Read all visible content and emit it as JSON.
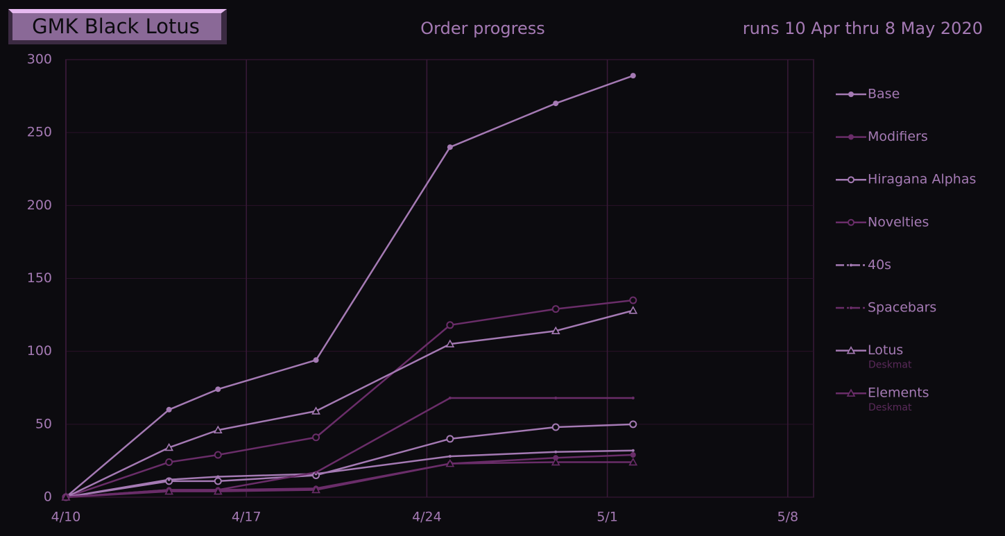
{
  "chart_data": {
    "type": "line",
    "title": "GMK Black Lotus",
    "subtitle": "Order progress",
    "annotation": "runs 10 Apr thru 8 May 2020",
    "x": [
      0,
      4,
      5.9,
      9.7,
      14.9,
      19,
      22
    ],
    "xlim": [
      0,
      29
    ],
    "xticks": [
      {
        "value": 0,
        "label": "4/10"
      },
      {
        "value": 7,
        "label": "4/17"
      },
      {
        "value": 14,
        "label": "4/24"
      },
      {
        "value": 21,
        "label": "5/1"
      },
      {
        "value": 28,
        "label": "5/8"
      }
    ],
    "ylim": [
      0,
      300
    ],
    "yticks": [
      0,
      50,
      100,
      150,
      200,
      250,
      300
    ],
    "grid": true,
    "legend": "right",
    "series": [
      {
        "name": "Base",
        "color": "#a57ab4",
        "marker": "dot",
        "values": [
          0,
          60,
          74,
          94,
          240,
          270,
          289
        ]
      },
      {
        "name": "Modifiers",
        "color": "#6a2d69",
        "marker": "dot",
        "values": [
          0,
          5,
          5,
          6,
          23,
          27,
          29
        ]
      },
      {
        "name": "Hiragana Alphas",
        "color": "#a57ab4",
        "marker": "circle",
        "values": [
          0,
          11,
          11,
          15,
          40,
          48,
          50
        ]
      },
      {
        "name": "Novelties",
        "color": "#6a2d69",
        "marker": "circle",
        "values": [
          0,
          24,
          29,
          41,
          118,
          129,
          135
        ]
      },
      {
        "name": "40s",
        "color": "#a57ab4",
        "marker": "point",
        "values": [
          0,
          12,
          14,
          16,
          28,
          31,
          32
        ]
      },
      {
        "name": "Spacebars",
        "color": "#6a2d69",
        "marker": "point",
        "values": [
          0,
          5,
          5,
          17,
          68,
          68,
          68
        ]
      },
      {
        "name": "Lotus",
        "subtitle": "Deskmat",
        "color": "#a57ab4",
        "marker": "triangle",
        "values": [
          0,
          34,
          46,
          59,
          105,
          114,
          128
        ]
      },
      {
        "name": "Elements",
        "subtitle": "Deskmat",
        "color": "#6a2d69",
        "marker": "triangle",
        "values": [
          0,
          4,
          4,
          5,
          23,
          24,
          24
        ]
      }
    ]
  }
}
